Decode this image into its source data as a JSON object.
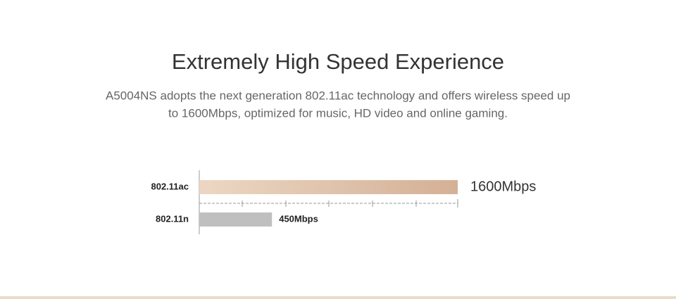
{
  "chart_data": {
    "type": "hbar",
    "title": "Extremely High Speed Experience",
    "subtitle": [
      "A5004NS adopts the next generation 802.11ac technology and offers wireless speed up",
      "to 1600Mbps, optimized for music, HD video and online gaming."
    ],
    "categories": [
      "802.11ac",
      "802.11n"
    ],
    "values": [
      1600,
      450
    ],
    "value_labels": [
      "1600Mbps",
      "450Mbps"
    ],
    "colors": [
      [
        "#ecd7c3",
        "#d4b096"
      ],
      [
        "#bfbfbf",
        "#bfbfbf"
      ]
    ],
    "xlim": [
      0,
      1600
    ]
  }
}
